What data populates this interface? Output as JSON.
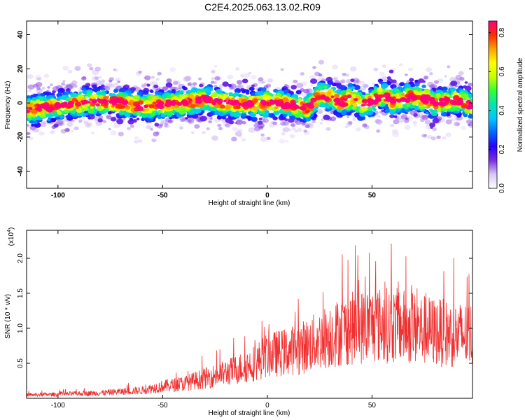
{
  "title": "C2E4.2025.063.13.02.R09",
  "chart_data": [
    {
      "type": "heatmap",
      "xlabel": "Height of straight line (km)",
      "ylabel": "Frequency (Hz)",
      "xlim": [
        -115,
        98
      ],
      "ylim": [
        -50,
        48
      ],
      "xticks": [
        -100,
        -50,
        0,
        50
      ],
      "yticks": [
        -40,
        -20,
        0,
        20,
        40
      ],
      "colorbar": {
        "label": "Normalized spectral amplitude",
        "range": [
          0.0,
          0.86
        ],
        "ticks": [
          0.0,
          0.2,
          0.4,
          0.6,
          0.8
        ],
        "colors": [
          "#ffffff",
          "#d9c8f5",
          "#7b2fe0",
          "#2a00ff",
          "#0066ff",
          "#00c8ff",
          "#00e6b0",
          "#33ff33",
          "#c8ff00",
          "#ffff00",
          "#ffa000",
          "#ff2a00",
          "#ff0080"
        ]
      },
      "ridge": {
        "x": [
          -115,
          -100,
          -90,
          -80,
          -70,
          -60,
          -50,
          -40,
          -30,
          -20,
          -10,
          0,
          10,
          20,
          25,
          30,
          35,
          40,
          45,
          50,
          55,
          60,
          70,
          80,
          90,
          98
        ],
        "y": [
          -4,
          -2,
          0,
          1,
          0,
          -2,
          -1,
          0,
          2,
          0,
          -1,
          0,
          -1,
          -3,
          5,
          4,
          0,
          3,
          -1,
          1,
          5,
          1,
          4,
          0,
          2,
          -2
        ]
      }
    },
    {
      "type": "line",
      "xlabel": "Height of straight line (km)",
      "ylabel": "SNR (10 * v/v)",
      "scale_label": "(x10",
      "scale_exponent": "4",
      "scale_suffix": ")",
      "xlim": [
        -115,
        98
      ],
      "ylim": [
        0,
        2.4
      ],
      "xticks": [
        -100,
        -50,
        0,
        50
      ],
      "yticks": [
        0.5,
        1.0,
        1.5,
        2.0
      ],
      "ytick_labels": [
        "0.5",
        "1.0",
        "1.5",
        "2.0"
      ],
      "series": [
        {
          "color": "#f03030",
          "x": [
            -115,
            -100,
            -80,
            -60,
            -50,
            -40,
            -30,
            -20,
            -10,
            -5,
            0,
            10,
            20,
            30,
            40,
            50,
            60,
            70,
            80,
            90,
            98
          ],
          "y": [
            0.05,
            0.06,
            0.08,
            0.12,
            0.18,
            0.22,
            0.3,
            0.38,
            0.48,
            0.55,
            0.65,
            0.7,
            0.8,
            0.95,
            1.05,
            1.1,
            1.1,
            1.05,
            1.0,
            0.95,
            0.95
          ]
        }
      ]
    }
  ]
}
